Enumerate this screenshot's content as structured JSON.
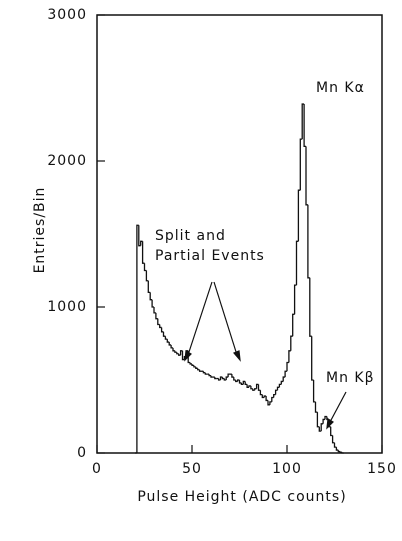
{
  "chart_data": {
    "type": "histogram",
    "xlabel": "Pulse Height  (ADC counts)",
    "ylabel": "Entries/Bin",
    "xlim": [
      0,
      150
    ],
    "ylim": [
      0,
      3000
    ],
    "xticks": [
      0,
      50,
      100,
      150
    ],
    "yticks": [
      0,
      1000,
      2000,
      3000
    ],
    "color": "#111111",
    "annotations": [
      {
        "text": "Split and"
      },
      {
        "text": "Partial Events"
      },
      {
        "text": "Mn Kα"
      },
      {
        "text": "Mn Kβ"
      }
    ],
    "bins": [
      20,
      21,
      22,
      23,
      24,
      25,
      26,
      27,
      28,
      29,
      30,
      31,
      32,
      33,
      34,
      35,
      36,
      37,
      38,
      39,
      40,
      41,
      42,
      43,
      44,
      45,
      46,
      47,
      48,
      49,
      50,
      51,
      52,
      53,
      54,
      55,
      56,
      57,
      58,
      59,
      60,
      61,
      62,
      63,
      64,
      65,
      66,
      67,
      68,
      69,
      70,
      71,
      72,
      73,
      74,
      75,
      76,
      77,
      78,
      79,
      80,
      81,
      82,
      83,
      84,
      85,
      86,
      87,
      88,
      89,
      90,
      91,
      92,
      93,
      94,
      95,
      96,
      97,
      98,
      99,
      100,
      101,
      102,
      103,
      104,
      105,
      106,
      107,
      108,
      109,
      110,
      111,
      112,
      113,
      114,
      115,
      116,
      117,
      118,
      119,
      120,
      121,
      122,
      123,
      124,
      125,
      126,
      127,
      128,
      129,
      130
    ],
    "counts": [
      0,
      1560,
      1420,
      1450,
      1300,
      1250,
      1180,
      1100,
      1050,
      1000,
      960,
      920,
      880,
      860,
      830,
      800,
      780,
      760,
      740,
      720,
      700,
      690,
      680,
      670,
      700,
      640,
      660,
      700,
      620,
      610,
      600,
      590,
      580,
      570,
      560,
      560,
      550,
      540,
      540,
      530,
      520,
      520,
      510,
      510,
      500,
      520,
      510,
      500,
      520,
      540,
      540,
      520,
      500,
      490,
      500,
      480,
      470,
      490,
      470,
      450,
      460,
      440,
      430,
      440,
      470,
      430,
      400,
      380,
      390,
      360,
      330,
      350,
      380,
      400,
      430,
      450,
      470,
      490,
      520,
      560,
      620,
      700,
      800,
      950,
      1150,
      1450,
      1800,
      2150,
      2390,
      2100,
      1700,
      1200,
      800,
      500,
      350,
      280,
      180,
      150,
      200,
      230,
      250,
      230,
      180,
      120,
      70,
      40,
      20,
      10,
      5,
      0
    ]
  }
}
